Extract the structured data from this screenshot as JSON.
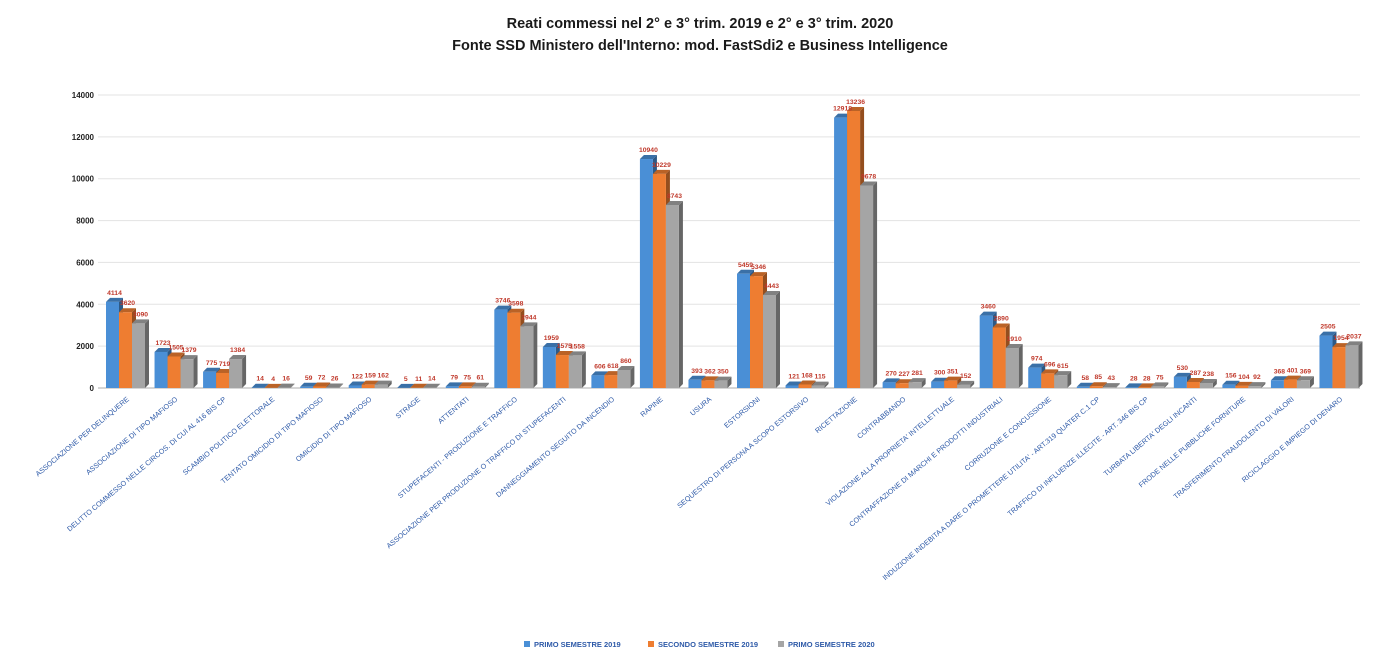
{
  "chart_data": {
    "type": "bar",
    "title": "Reati commessi nel 2° e 3° trim. 2019 e 2° e 3° trim. 2020",
    "subtitle": "Fonte SSD Ministero dell'Interno: mod. FastSdi2 e Business Intelligence",
    "xlabel": "",
    "ylabel": "",
    "ylim": [
      0,
      14000
    ],
    "yticks": [
      0,
      2000,
      4000,
      6000,
      8000,
      10000,
      12000,
      14000
    ],
    "grid": true,
    "legend_position": "bottom",
    "categories": [
      "ASSOCIAZIONE PER DELINQUERE",
      "ASSOCIAZIONE DI TIPO MAFIOSO",
      "DELITTO COMMESSO NELLE CIRCOS. DI CUI AL 416 BIS CP",
      "SCAMBIO POLITICO ELETTORALE",
      "TENTATO OMICIDIO DI TIPO MAFIOSO",
      "OMICIDIO DI TIPO MAFIOSO",
      "STRAGE",
      "ATTENTATI",
      "STUPEFACENTI - PRODUZIONE E TRAFFICO",
      "ASSOCIAZIONE PER PRODUZIONE O TRAFFICO DI STUPEFACENTI",
      "DANNEGGIAMENTO SEGUITO DA INCENDIO",
      "RAPINE",
      "USURA",
      "ESTORSIONI",
      "SEQUESTRO DI PERSONA A SCOPO ESTORSIVO",
      "RICETTAZIONE",
      "CONTRABBANDO",
      "VIOLAZIONE ALLA PROPRIETA' INTELLETTUALE",
      "CONTRAFFAZIONE DI MARCHI E PRODOTTI INDUSTRIALI",
      "CORRUZIONE E CONCUSSIONE",
      "INDUZIONE INDEBITA A DARE O PROMETTERE UTILITA' - ART.319 QUATER C.1 CP",
      "TRAFFICO DI INFLUENZE ILLECITE - ART. 346 BIS CP",
      "TURBATA LIBERTA' DEGLI INCANTI",
      "FRODE NELLE PUBBLICHE FORNITURE",
      "TRASFERIMENTO FRAUDOLENTO DI VALORI",
      "RICICLAGGIO E IMPIEGO DI DENARO"
    ],
    "series": [
      {
        "name": "PRIMO SEMESTRE 2019",
        "color": "#4a8fd6",
        "values": [
          4114,
          1723,
          775,
          14,
          59,
          122,
          5,
          79,
          3746,
          1959,
          606,
          10940,
          393,
          5459,
          121,
          12918,
          270,
          300,
          3460,
          974,
          58,
          28,
          530,
          156,
          368,
          2505
        ]
      },
      {
        "name": "SECONDO SEMESTRE 2019",
        "color": "#ee7d31",
        "values": [
          3620,
          1505,
          719,
          4,
          72,
          159,
          11,
          75,
          3598,
          1575,
          618,
          10229,
          362,
          5346,
          168,
          13236,
          227,
          351,
          2890,
          696,
          85,
          28,
          287,
          104,
          401,
          1954
        ]
      },
      {
        "name": "PRIMO SEMESTRE 2020",
        "color": "#a5a5a5",
        "values": [
          3090,
          1379,
          1384,
          16,
          26,
          162,
          14,
          61,
          2944,
          1558,
          860,
          8743,
          350,
          4443,
          115,
          9678,
          281,
          152,
          1910,
          615,
          43,
          75,
          238,
          92,
          369,
          2037
        ]
      }
    ]
  }
}
